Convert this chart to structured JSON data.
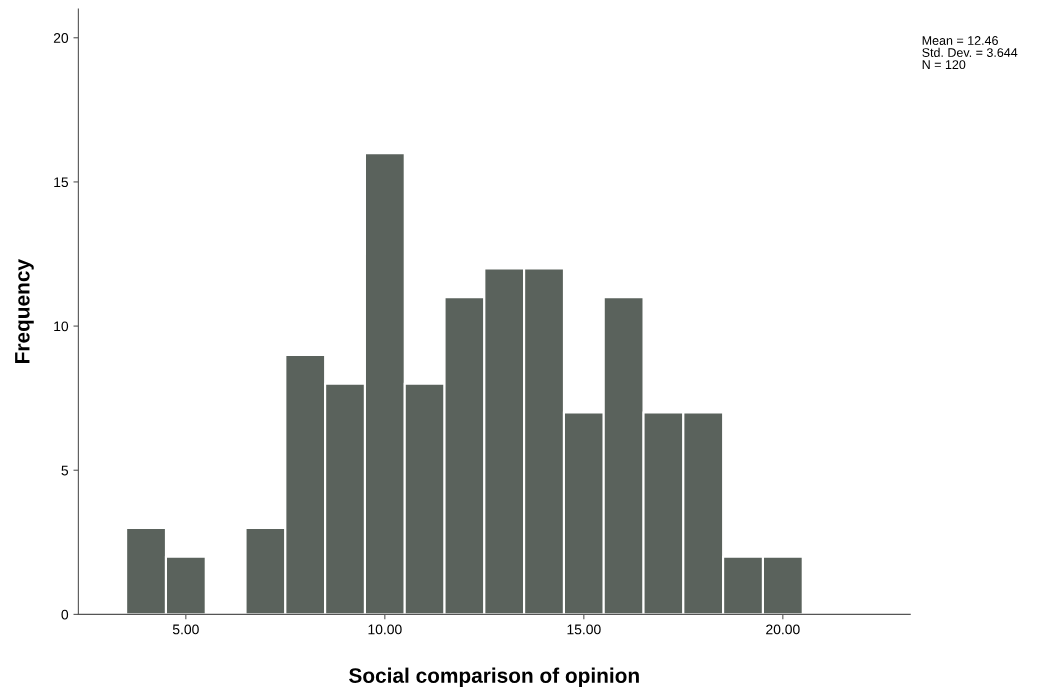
{
  "chart_data": {
    "type": "histogram",
    "xlabel": "Social comparison of opinion",
    "ylabel": "Frequency",
    "bins": [
      3.5,
      4.5,
      5.5,
      6.5,
      7.5,
      8.5,
      9.5,
      10.5,
      11.5,
      12.5,
      13.5,
      14.5,
      15.5,
      16.5,
      17.5,
      18.5,
      19.5,
      20.5
    ],
    "values": [
      3,
      2,
      0,
      3,
      9,
      8,
      16,
      8,
      11,
      12,
      12,
      7,
      11,
      7,
      7,
      2,
      2
    ],
    "color": "#5a625c",
    "xlim": [
      2.3,
      23.2
    ],
    "xticks": [
      {
        "value": 5,
        "label": "5.00"
      },
      {
        "value": 10,
        "label": "10.00"
      },
      {
        "value": 15,
        "label": "15.00"
      },
      {
        "value": 20,
        "label": "20.00"
      }
    ],
    "ylim": [
      0,
      21
    ],
    "yticks": [
      0,
      5,
      10,
      15,
      20
    ],
    "grid": false,
    "annotations": [
      "Mean = 12.46",
      "Std. Dev. = 3.644",
      "N = 120"
    ]
  }
}
